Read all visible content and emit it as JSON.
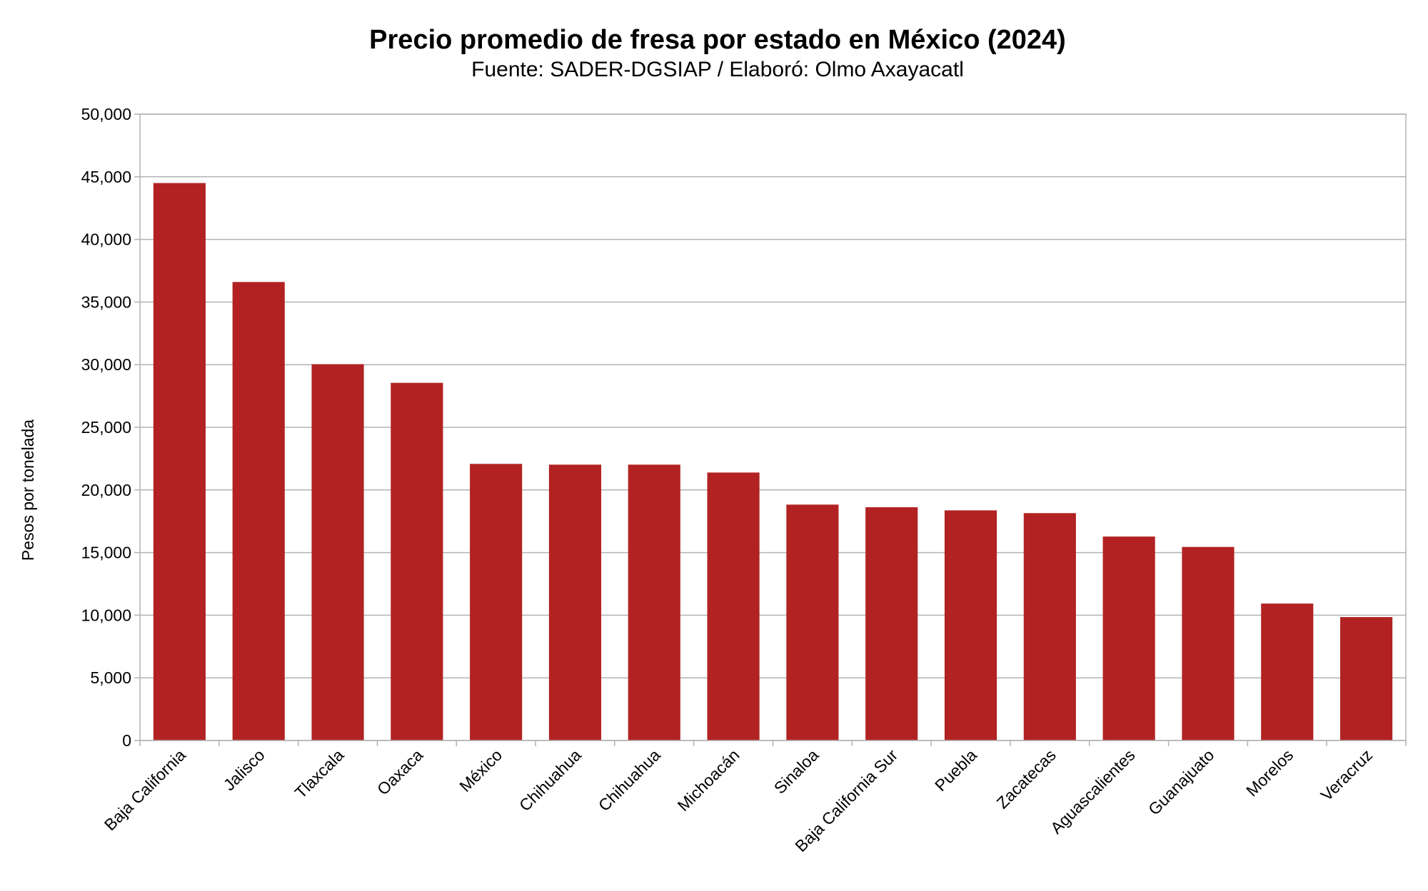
{
  "chart_data": {
    "type": "bar",
    "title": "Precio promedio de fresa por estado en México (2024)",
    "subtitle": "Fuente: SADER-DGSIAP / Elaboró: Olmo Axayacatl",
    "xlabel": "",
    "ylabel": "Pesos por tonelada",
    "ylim": [
      0,
      50000
    ],
    "yticks": [
      0,
      5000,
      10000,
      15000,
      20000,
      25000,
      30000,
      35000,
      40000,
      45000,
      50000
    ],
    "ytick_labels": [
      "0",
      "5,000",
      "10,000",
      "15,000",
      "20,000",
      "25,000",
      "30,000",
      "35,000",
      "40,000",
      "45,000",
      "50,000"
    ],
    "grid": "horizontal",
    "bar_color": "#b22222",
    "categories": [
      "Baja California",
      "Jalisco",
      "Tlaxcala",
      "Oaxaca",
      "México",
      "Chihuahua",
      "Chihuahua",
      "Michoacán",
      "Sinaloa",
      "Baja California Sur",
      "Puebla",
      "Zacatecas",
      "Aguascalientes",
      "Guanajuato",
      "Morelos",
      "Veracruz"
    ],
    "values": [
      44500,
      36600,
      30040,
      28550,
      22080,
      22020,
      22020,
      21390,
      18830,
      18620,
      18370,
      18150,
      16280,
      15450,
      10930,
      9850
    ]
  }
}
